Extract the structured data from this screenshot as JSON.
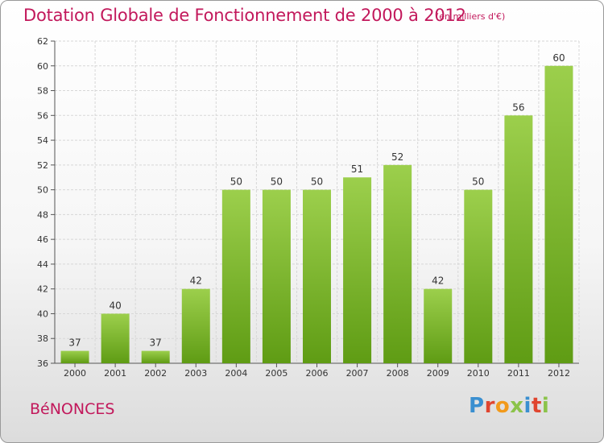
{
  "header": {
    "title": "Dotation Globale de Fonctionnement de 2000 à 2012",
    "subtitle": "(en milliers d'€)"
  },
  "footer": {
    "commune": "BéNONCES",
    "logo_letters": [
      "P",
      "r",
      "o",
      "x",
      "i",
      "t",
      "i"
    ],
    "logo_colors": [
      "#3a8fd0",
      "#e0452f",
      "#f29a1b",
      "#8bc34a",
      "#3a8fd0",
      "#e0452f",
      "#8bc34a"
    ]
  },
  "chart_data": {
    "type": "bar",
    "title": "Dotation Globale de Fonctionnement de 2000 à 2012",
    "subtitle": "(en milliers d'€)",
    "categories": [
      "2000",
      "2001",
      "2002",
      "2003",
      "2004",
      "2005",
      "2006",
      "2007",
      "2008",
      "2009",
      "2010",
      "2011",
      "2012"
    ],
    "values": [
      37,
      40,
      37,
      42,
      50,
      50,
      50,
      51,
      52,
      42,
      50,
      56,
      60
    ],
    "ylim": [
      36,
      62
    ],
    "yticks": [
      36,
      38,
      40,
      42,
      44,
      46,
      48,
      50,
      52,
      54,
      56,
      58,
      60,
      62
    ],
    "grid": true,
    "bar_color_top": "#9ccf4c",
    "bar_color_bottom": "#5f9c14",
    "xlabel": "",
    "ylabel": ""
  }
}
